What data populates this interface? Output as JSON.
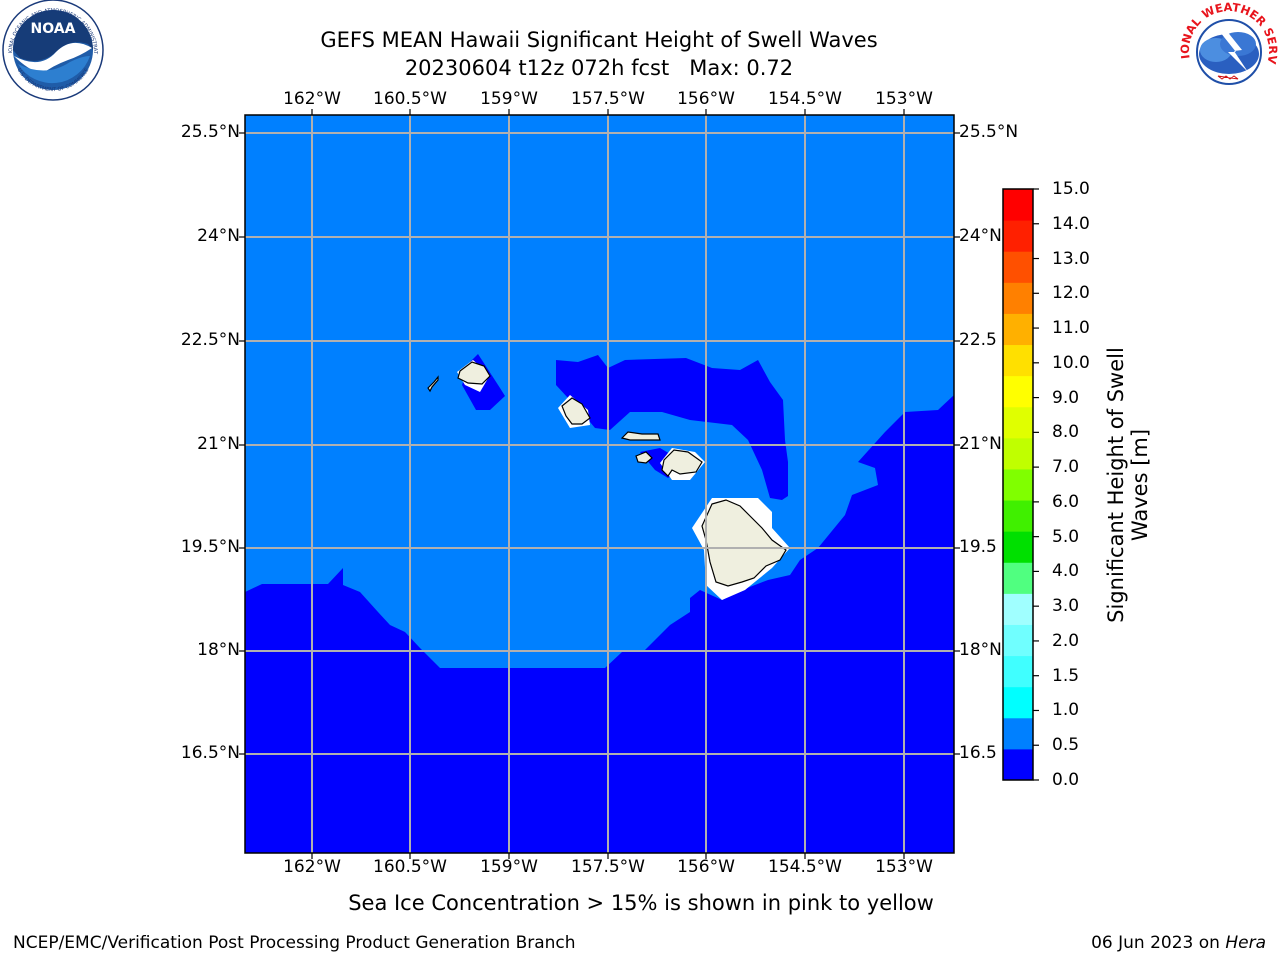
{
  "title": {
    "line1": "GEFS MEAN Hawaii Significant Height of Swell Waves",
    "line2": "20230604 t12z 072h fcst   Max: 0.72"
  },
  "logos": {
    "noaa": {
      "text": "NOAA",
      "ring_top": "NATIONAL OCEANIC AND ATMOSPHERIC ADMINISTRATION",
      "ring_bottom": "U.S. DEPARTMENT OF COMMERCE"
    },
    "nws": {
      "ring": "NATIONAL WEATHER SERVICE"
    }
  },
  "map": {
    "lon_ticks": [
      "162°W",
      "160.5°W",
      "159°W",
      "157.5°W",
      "156°W",
      "154.5°W",
      "153°W"
    ],
    "lat_ticks": [
      "25.5°N",
      "24°N",
      "22.5°N",
      "21°N",
      "19.5°N",
      "18°N",
      "16.5°N"
    ],
    "lat_ticks_right": [
      "25.5°N",
      "24°N",
      "22.5",
      "21°N",
      "19.5",
      "18°N",
      "16.5"
    ],
    "colors": {
      "band_0_0p5": "#0000ff",
      "band_0p5_1": "#0080ff",
      "land": "#efefdf",
      "grid": "#b0b0b0"
    }
  },
  "colorbar": {
    "label": "Significant Height of Swell Waves [m]",
    "ticks": [
      "15.0",
      "14.0",
      "13.0",
      "12.0",
      "11.0",
      "10.0",
      "9.0",
      "8.0",
      "7.0",
      "6.0",
      "5.0",
      "4.0",
      "3.0",
      "2.0",
      "1.5",
      "1.0",
      "0.5",
      "0.0"
    ],
    "colors_bottom_to_top": [
      "#0000ff",
      "#0080ff",
      "#00ffff",
      "#40ffff",
      "#70ffff",
      "#a0ffff",
      "#50ff80",
      "#00e000",
      "#40f000",
      "#80ff00",
      "#c0ff00",
      "#e0ff00",
      "#ffff00",
      "#ffe000",
      "#ffb000",
      "#ff8000",
      "#ff5000",
      "#ff2000",
      "#ff0000"
    ]
  },
  "note": "Sea Ice Concentration > 15% is shown in pink to yellow",
  "footer": {
    "left": "NCEP/EMC/Verification Post Processing Product Generation Branch",
    "right_date": "06 Jun 2023 on ",
    "right_host": "Hera"
  }
}
